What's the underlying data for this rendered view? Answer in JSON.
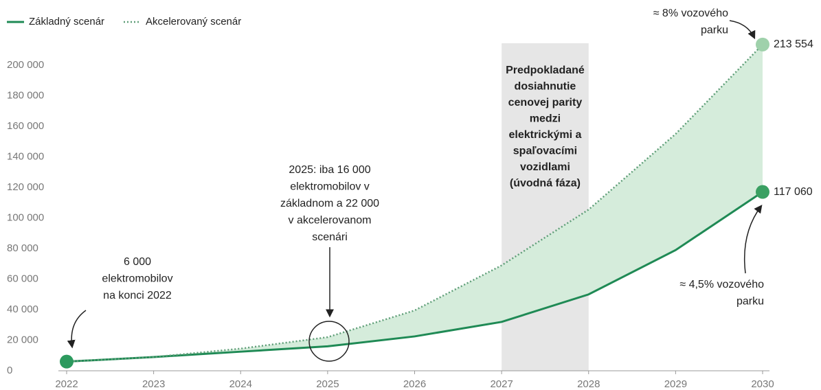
{
  "chart_data": {
    "type": "line",
    "x": [
      2022,
      2023,
      2024,
      2025,
      2026,
      2027,
      2028,
      2029,
      2030
    ],
    "series": [
      {
        "name": "Základný scenár",
        "color": "#1f8a55",
        "style": "solid",
        "values": [
          6000,
          9000,
          12500,
          16000,
          22500,
          32000,
          50000,
          79000,
          117060
        ],
        "value_labels": [
          null,
          null,
          null,
          null,
          null,
          null,
          null,
          null,
          "117 060"
        ]
      },
      {
        "name": "Akcelerovaný scenár",
        "color": "#5f9e78",
        "style": "dotted",
        "values": [
          6000,
          9000,
          14500,
          22000,
          39500,
          69000,
          105500,
          155000,
          213554
        ],
        "value_labels": [
          null,
          null,
          null,
          null,
          null,
          null,
          null,
          null,
          "213 554"
        ]
      }
    ],
    "fill_between_color": "#d5ecdb",
    "xlim": [
      2022,
      2030
    ],
    "xticks": [
      2022,
      2023,
      2024,
      2025,
      2026,
      2027,
      2028,
      2029,
      2030
    ],
    "ylim": [
      0,
      220000
    ],
    "yticks": [
      0,
      {
        "value": 20000,
        "label": "20 000"
      },
      {
        "value": 40000,
        "label": "40 000"
      },
      {
        "value": 60000,
        "label": "60 000"
      },
      {
        "value": 80000,
        "label": "80 000"
      },
      {
        "value": 100000,
        "label": "100 000"
      },
      {
        "value": 120000,
        "label": "120 000"
      },
      {
        "value": 140000,
        "label": "140 000"
      },
      {
        "value": 160000,
        "label": "160 000"
      },
      {
        "value": 180000,
        "label": "180 000"
      },
      {
        "value": 200000,
        "label": "200 000"
      }
    ],
    "legend": "top-left",
    "band": {
      "x": [
        2027,
        2028
      ],
      "color": "#e6e6e6",
      "label": [
        "Predpokladané",
        "dosiahnutie",
        "cenovej parity",
        "medzi",
        "elektrickými a",
        "spaľovacími",
        "vozidlami",
        "(úvodná fáza)"
      ]
    },
    "annotations": [
      [
        "6 000",
        "elektromobilov",
        "na konci 2022"
      ],
      [
        "2025: iba 16 000",
        "elektromobilov v",
        "základnom a 22 000",
        "v akcelerovanom",
        "scenári"
      ],
      [
        "≈ 8% vozového",
        "parku"
      ],
      [
        "≈ 4,5% vozového",
        "parku"
      ]
    ]
  }
}
